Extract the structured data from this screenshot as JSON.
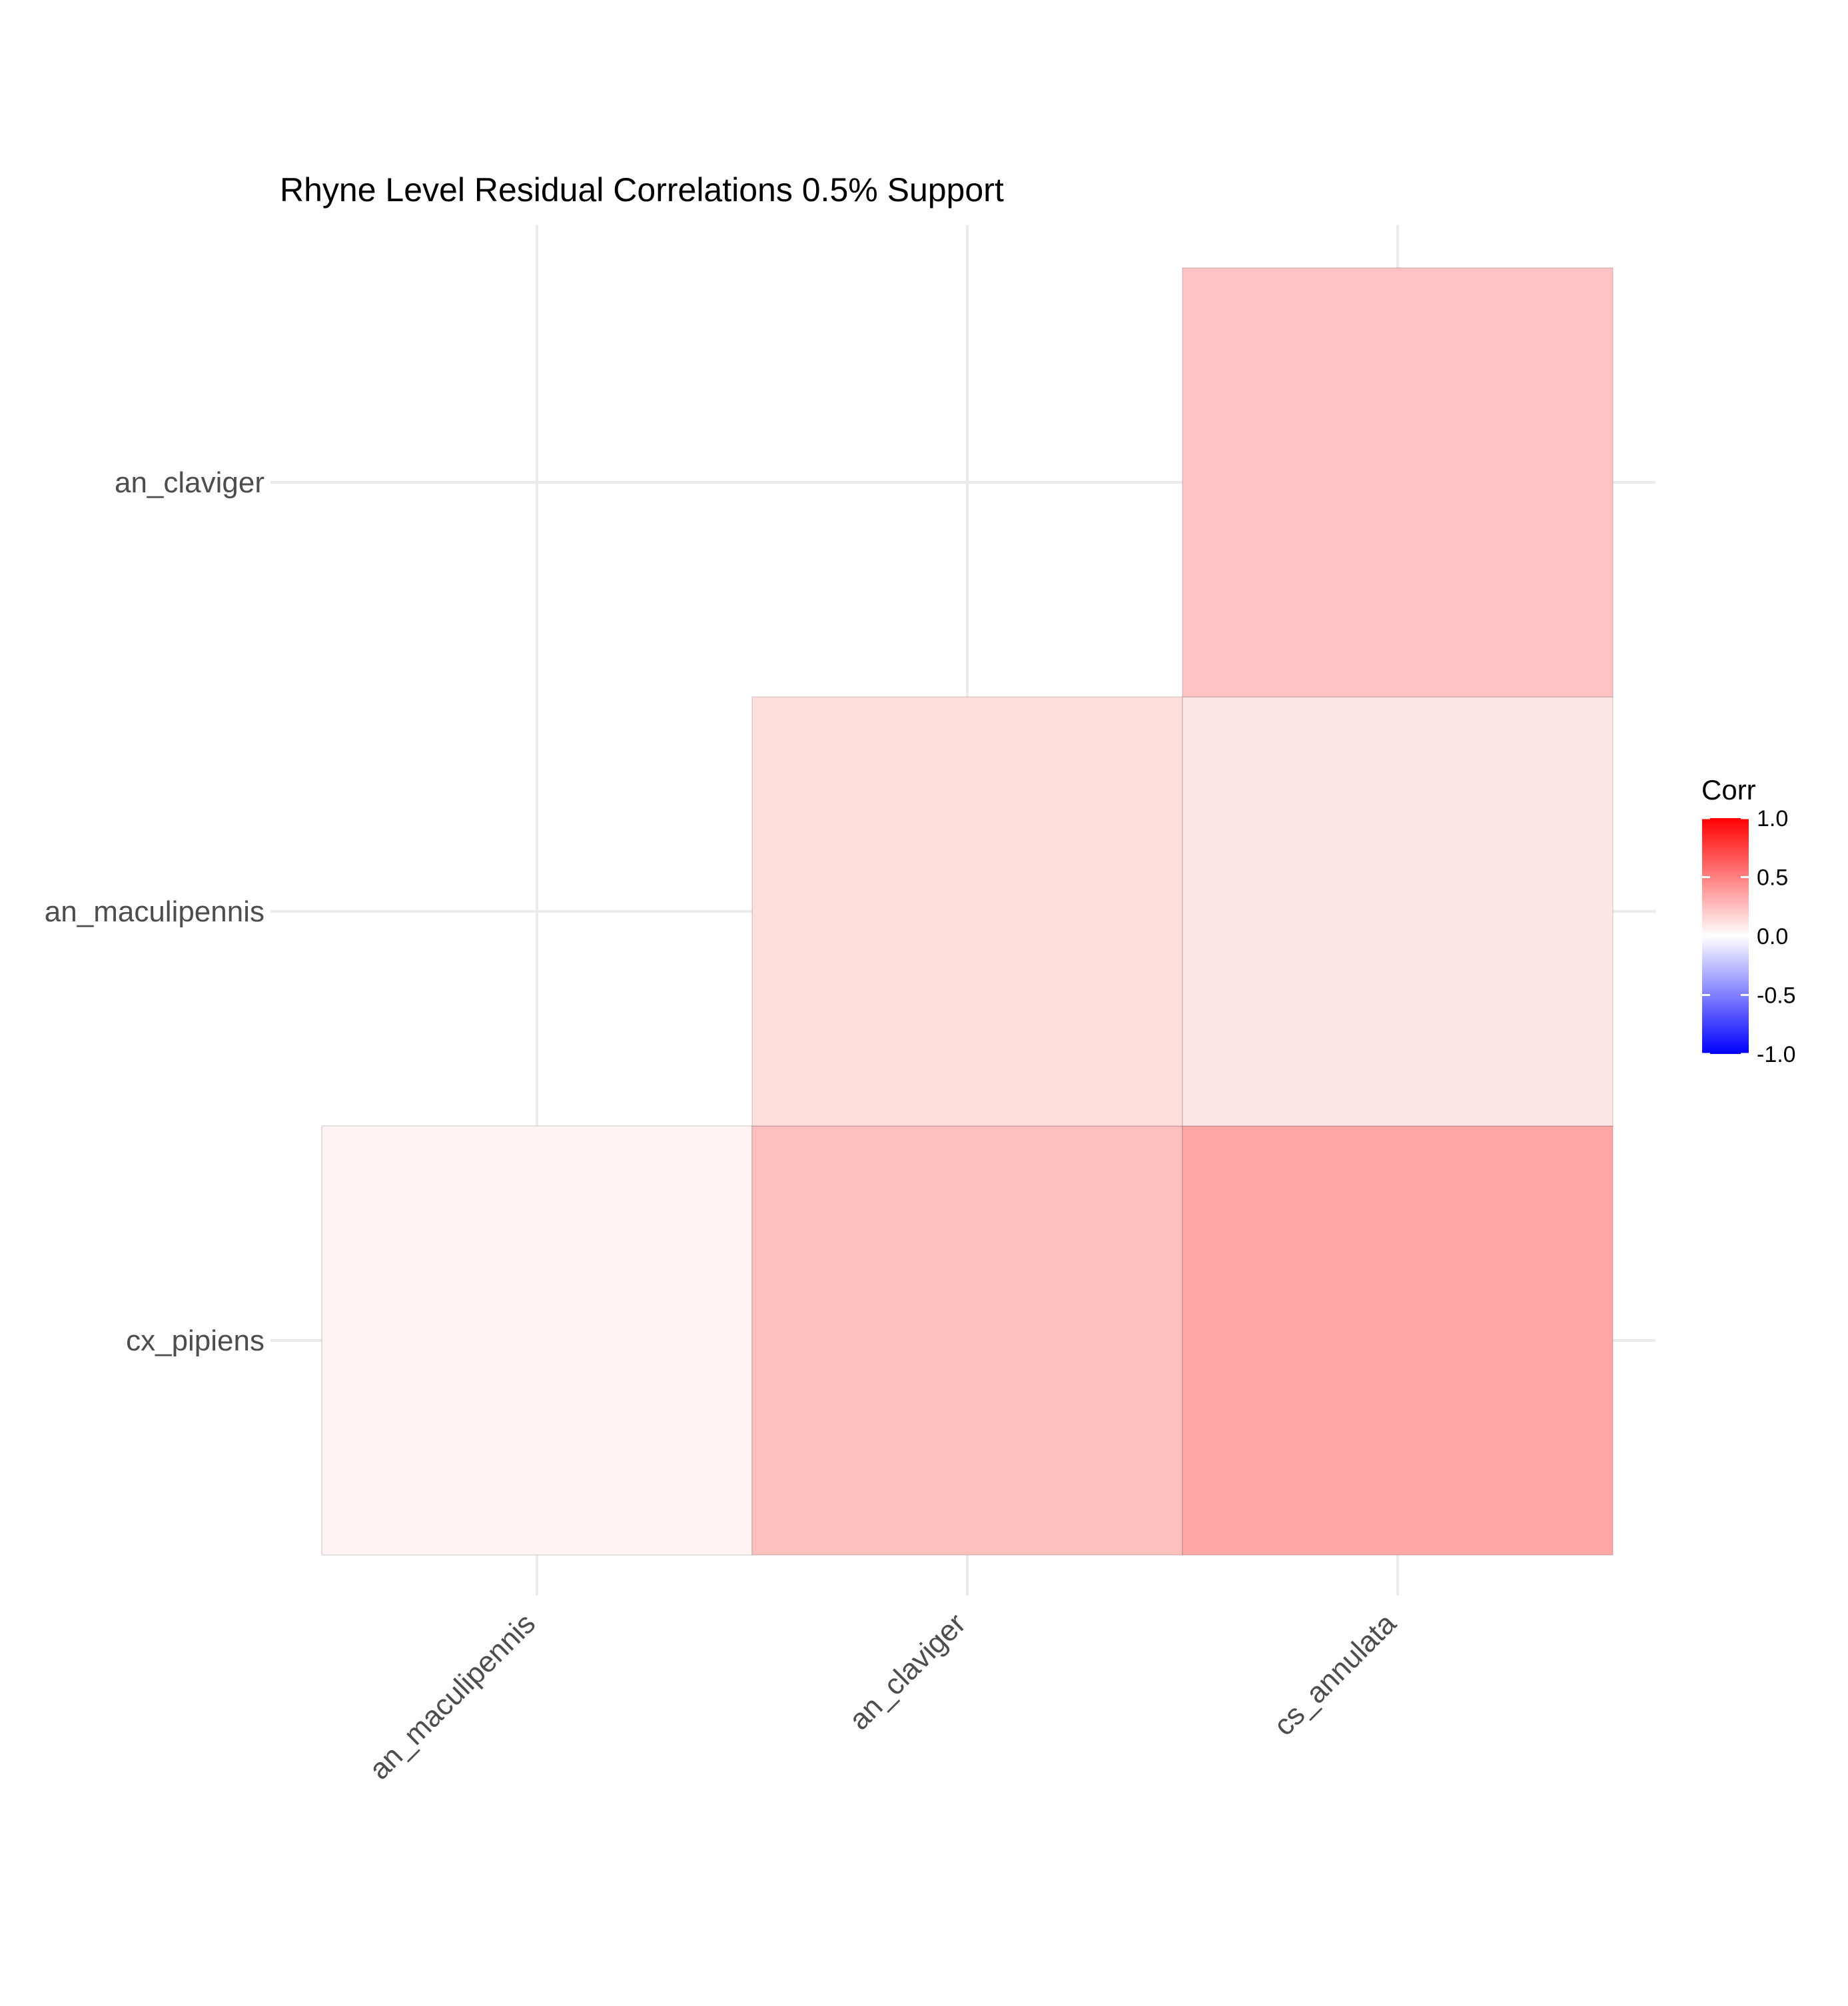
{
  "chart_data": {
    "type": "heatmap",
    "title": "Rhyne Level Residual Correlations 0.5% Support",
    "x_categories": [
      "an_maculipennis",
      "an_claviger",
      "cs_annulata"
    ],
    "y_categories": [
      "cx_pipiens",
      "an_maculipennis",
      "an_claviger"
    ],
    "cells": [
      {
        "x": "an_maculipennis",
        "y": "cx_pipiens",
        "value": 0.05
      },
      {
        "x": "an_claviger",
        "y": "cx_pipiens",
        "value": 0.25
      },
      {
        "x": "cs_annulata",
        "y": "cx_pipiens",
        "value": 0.35
      },
      {
        "x": "an_claviger",
        "y": "an_maculipennis",
        "value": 0.13
      },
      {
        "x": "cs_annulata",
        "y": "an_maculipennis",
        "value": 0.1
      },
      {
        "x": "cs_annulata",
        "y": "an_claviger",
        "value": 0.24
      }
    ],
    "legend": {
      "title": "Corr",
      "ticks": [
        "1.0",
        "0.5",
        "0.0",
        "-0.5",
        "-1.0"
      ],
      "tick_values": [
        1.0,
        0.5,
        0.0,
        -0.5,
        -1.0
      ],
      "range": [
        -1,
        1
      ],
      "placement": "right"
    },
    "colors": {
      "low": "#0000ff",
      "mid": "#ffffff",
      "high": "#ff0000"
    },
    "grid": true
  }
}
